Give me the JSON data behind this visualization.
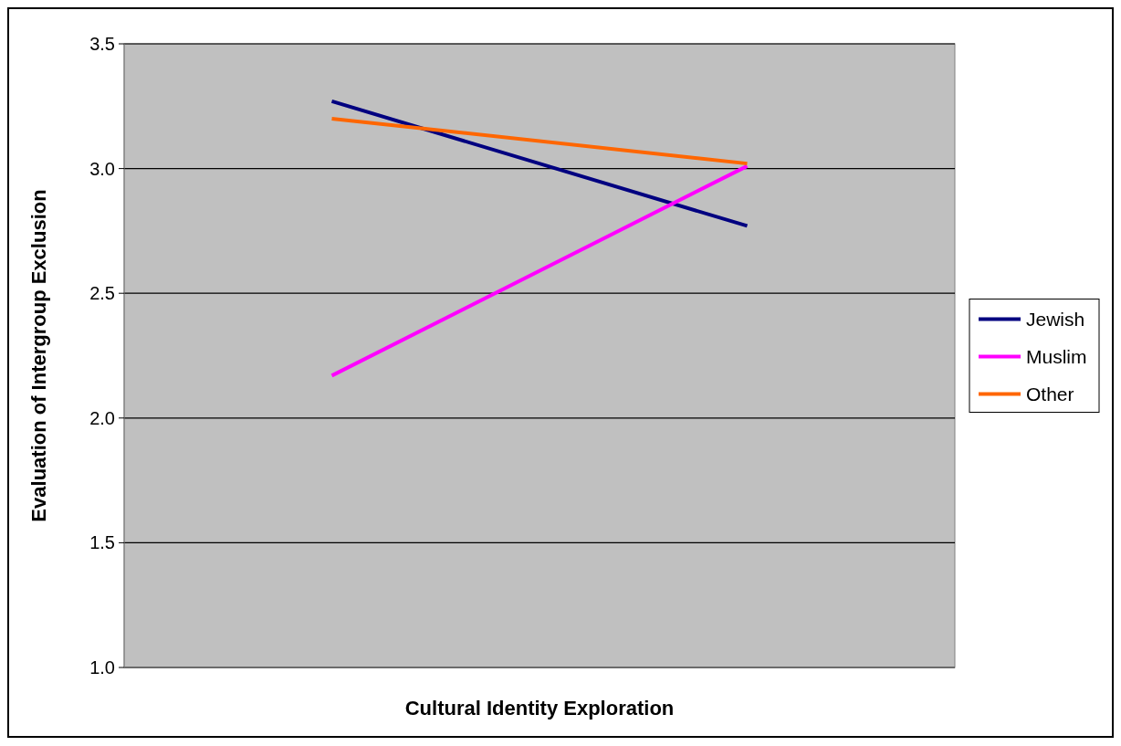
{
  "chart_data": {
    "type": "line",
    "xlabel": "Cultural Identity Exploration",
    "ylabel": "Evaluation of Intergroup Exclusion",
    "categories": [
      null,
      null
    ],
    "series": [
      {
        "name": "Jewish",
        "color": "#000080",
        "values": [
          3.27,
          2.77
        ]
      },
      {
        "name": "Muslim",
        "color": "#ff00ff",
        "values": [
          2.17,
          3.01
        ]
      },
      {
        "name": "Other",
        "color": "#ff6600",
        "values": [
          3.2,
          3.02
        ]
      }
    ],
    "ylim": [
      1.0,
      3.5
    ],
    "yticks": [
      {
        "value": 1.0,
        "label": "1.0"
      },
      {
        "value": 1.5,
        "label": "1.5"
      },
      {
        "value": 2.0,
        "label": "2.0"
      },
      {
        "value": 2.5,
        "label": "2.5"
      },
      {
        "value": 3.0,
        "label": "3.0"
      },
      {
        "value": 3.5,
        "label": "3.5"
      }
    ],
    "grid": "y",
    "legend": "right",
    "marker": "none",
    "line_style": "solid"
  }
}
